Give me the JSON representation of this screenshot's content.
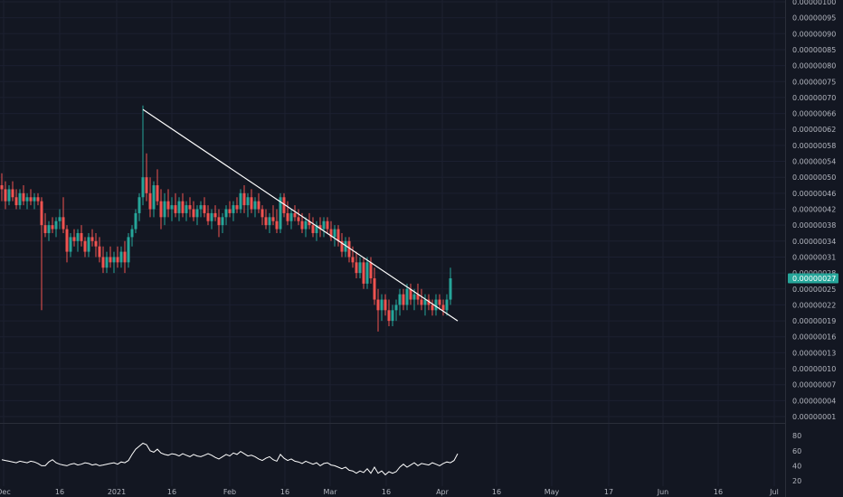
{
  "colors": {
    "background": "#131722",
    "up": "#26a69a",
    "down": "#ef5350",
    "grid": "#1c2030",
    "trendline": "#ffffff",
    "oscillator": "#ffffff",
    "axis_text": "#b2b5be",
    "price_badge": "#26a69a"
  },
  "chart_data": [
    {
      "type": "candlestick",
      "title": "",
      "grid": true,
      "y_axis_position": "right",
      "ylim": [
        0,
        1e-06
      ],
      "y_ticks": [
        "0.00000100",
        "0.00000095",
        "0.00000090",
        "0.00000085",
        "0.00000080",
        "0.00000075",
        "0.00000070",
        "0.00000066",
        "0.00000062",
        "0.00000058",
        "0.00000054",
        "0.00000050",
        "0.00000046",
        "0.00000042",
        "0.00000038",
        "0.00000034",
        "0.00000031",
        "0.00000028",
        "0.00000025",
        "0.00000022",
        "0.00000019",
        "0.00000016",
        "0.00000013",
        "0.00000010",
        "0.00000007",
        "0.00000004",
        "0.00000001"
      ],
      "x_ticks": [
        "Dec",
        "16",
        "2021",
        "16",
        "Feb",
        "16",
        "Mar",
        "16",
        "Apr",
        "16",
        "May",
        "17",
        "Jun",
        "16",
        "Jul"
      ],
      "current_price": "0.00000027",
      "candles": [
        [
          4.8e-07,
          5.1e-07,
          4.4e-07,
          4.7e-07
        ],
        [
          4.7e-07,
          4.9e-07,
          4.2e-07,
          4.4e-07
        ],
        [
          4.4e-07,
          4.8e-07,
          4.3e-07,
          4.7e-07
        ],
        [
          4.7e-07,
          4.9e-07,
          4.4e-07,
          4.5e-07
        ],
        [
          4.5e-07,
          4.7e-07,
          4.2e-07,
          4.3e-07
        ],
        [
          4.3e-07,
          4.7e-07,
          4.2e-07,
          4.6e-07
        ],
        [
          4.6e-07,
          4.8e-07,
          4.3e-07,
          4.4e-07
        ],
        [
          4.4e-07,
          4.6e-07,
          4.2e-07,
          4.5e-07
        ],
        [
          4.5e-07,
          4.7e-07,
          4.3e-07,
          4.4e-07
        ],
        [
          4.4e-07,
          4.6e-07,
          4.2e-07,
          4.5e-07
        ],
        [
          4.5e-07,
          4.6e-07,
          4.3e-07,
          4.4e-07
        ],
        [
          4.4e-07,
          4.5e-07,
          2.1e-07,
          3.8e-07
        ],
        [
          3.8e-07,
          4.1e-07,
          3.5e-07,
          3.6e-07
        ],
        [
          3.6e-07,
          3.9e-07,
          3.4e-07,
          3.8e-07
        ],
        [
          3.8e-07,
          4e-07,
          3.6e-07,
          3.7e-07
        ],
        [
          3.7e-07,
          4e-07,
          3.5e-07,
          3.9e-07
        ],
        [
          3.9e-07,
          4.2e-07,
          3.7e-07,
          4e-07
        ],
        [
          4e-07,
          4.5e-07,
          3.6e-07,
          3.7e-07
        ],
        [
          3.7e-07,
          3.8e-07,
          3e-07,
          3.2e-07
        ],
        [
          3.2e-07,
          3.6e-07,
          3.1e-07,
          3.5e-07
        ],
        [
          3.5e-07,
          3.7e-07,
          3.3e-07,
          3.4e-07
        ],
        [
          3.4e-07,
          3.7e-07,
          3.2e-07,
          3.6e-07
        ],
        [
          3.6e-07,
          3.8e-07,
          3.3e-07,
          3.4e-07
        ],
        [
          3.4e-07,
          3.5e-07,
          3.1e-07,
          3.2e-07
        ],
        [
          3.2e-07,
          3.6e-07,
          3.1e-07,
          3.5e-07
        ],
        [
          3.5e-07,
          3.7e-07,
          3.3e-07,
          3.4e-07
        ],
        [
          3.4e-07,
          3.6e-07,
          3.1e-07,
          3.3e-07
        ],
        [
          3.3e-07,
          3.5e-07,
          3e-07,
          3.1e-07
        ],
        [
          3.1e-07,
          3.3e-07,
          2.8e-07,
          2.9e-07
        ],
        [
          2.9e-07,
          3.2e-07,
          2.8e-07,
          3.1e-07
        ],
        [
          3.1e-07,
          3.3e-07,
          2.9e-07,
          3e-07
        ],
        [
          3e-07,
          3.2e-07,
          2.8e-07,
          3.1e-07
        ],
        [
          3.1e-07,
          3.3e-07,
          2.9e-07,
          3e-07
        ],
        [
          3e-07,
          3.3e-07,
          2.9e-07,
          3.2e-07
        ],
        [
          3.2e-07,
          3.4e-07,
          2.8e-07,
          3e-07
        ],
        [
          3e-07,
          3.6e-07,
          2.9e-07,
          3.5e-07
        ],
        [
          3.5e-07,
          3.8e-07,
          3.3e-07,
          3.7e-07
        ],
        [
          3.7e-07,
          4.2e-07,
          3.6e-07,
          4.1e-07
        ],
        [
          4.1e-07,
          4.6e-07,
          3.9e-07,
          4.5e-07
        ],
        [
          4.5e-07,
          6.8e-07,
          4.3e-07,
          5e-07
        ],
        [
          5e-07,
          5.6e-07,
          4.4e-07,
          4.6e-07
        ],
        [
          4.6e-07,
          5e-07,
          4e-07,
          4.2e-07
        ],
        [
          4.2e-07,
          4.9e-07,
          4e-07,
          4.8e-07
        ],
        [
          4.8e-07,
          5.2e-07,
          4.3e-07,
          4.4e-07
        ],
        [
          4.4e-07,
          4.7e-07,
          3.7e-07,
          4e-07
        ],
        [
          4e-07,
          4.6e-07,
          3.8e-07,
          4.4e-07
        ],
        [
          4.4e-07,
          4.7e-07,
          4e-07,
          4.2e-07
        ],
        [
          4.2e-07,
          4.5e-07,
          3.9e-07,
          4.3e-07
        ],
        [
          4.3e-07,
          4.6e-07,
          4e-07,
          4.1e-07
        ],
        [
          4.1e-07,
          4.5e-07,
          3.9e-07,
          4.4e-07
        ],
        [
          4.4e-07,
          4.6e-07,
          4e-07,
          4.1e-07
        ],
        [
          4.1e-07,
          4.4e-07,
          3.9e-07,
          4.3e-07
        ],
        [
          4.3e-07,
          4.5e-07,
          4e-07,
          4.2e-07
        ],
        [
          4.2e-07,
          4.4e-07,
          3.9e-07,
          4e-07
        ],
        [
          4e-07,
          4.3e-07,
          3.8e-07,
          4.2e-07
        ],
        [
          4.2e-07,
          4.4e-07,
          4e-07,
          4.3e-07
        ],
        [
          4.3e-07,
          4.5e-07,
          4e-07,
          4.1e-07
        ],
        [
          4.1e-07,
          4.3e-07,
          3.8e-07,
          3.9e-07
        ],
        [
          3.9e-07,
          4.2e-07,
          3.7e-07,
          4.1e-07
        ],
        [
          4.1e-07,
          4.3e-07,
          3.9e-07,
          4e-07
        ],
        [
          4e-07,
          4.2e-07,
          3.5e-07,
          3.8e-07
        ],
        [
          3.8e-07,
          4.1e-07,
          3.6e-07,
          4e-07
        ],
        [
          4e-07,
          4.3e-07,
          3.8e-07,
          4.2e-07
        ],
        [
          4.2e-07,
          4.4e-07,
          4e-07,
          4.1e-07
        ],
        [
          4.1e-07,
          4.4e-07,
          3.9e-07,
          4.3e-07
        ],
        [
          4.3e-07,
          4.5e-07,
          4.1e-07,
          4.2e-07
        ],
        [
          4.2e-07,
          4.7e-07,
          4.1e-07,
          4.6e-07
        ],
        [
          4.6e-07,
          4.8e-07,
          4.1e-07,
          4.3e-07
        ],
        [
          4.3e-07,
          4.6e-07,
          4e-07,
          4.5e-07
        ],
        [
          4.5e-07,
          4.7e-07,
          4.1e-07,
          4.2e-07
        ],
        [
          4.2e-07,
          4.5e-07,
          4e-07,
          4.4e-07
        ],
        [
          4.4e-07,
          4.6e-07,
          4.1e-07,
          4.2e-07
        ],
        [
          4.2e-07,
          4.3e-07,
          3.8e-07,
          4e-07
        ],
        [
          4e-07,
          4.2e-07,
          3.7e-07,
          3.8e-07
        ],
        [
          3.8e-07,
          4.1e-07,
          3.6e-07,
          4e-07
        ],
        [
          4e-07,
          4.3e-07,
          3.8e-07,
          3.9e-07
        ],
        [
          3.9e-07,
          4.2e-07,
          3.6e-07,
          3.7e-07
        ],
        [
          3.7e-07,
          4.6e-07,
          3.6e-07,
          4.5e-07
        ],
        [
          4.5e-07,
          4.6e-07,
          4e-07,
          4.1e-07
        ],
        [
          4.1e-07,
          4.4e-07,
          3.8e-07,
          3.9e-07
        ],
        [
          3.9e-07,
          4.2e-07,
          3.7e-07,
          4.1e-07
        ],
        [
          4.1e-07,
          4.3e-07,
          3.9e-07,
          4e-07
        ],
        [
          4e-07,
          4.2e-07,
          3.8e-07,
          3.9e-07
        ],
        [
          3.9e-07,
          4.1e-07,
          3.6e-07,
          3.7e-07
        ],
        [
          3.7e-07,
          4e-07,
          3.5e-07,
          3.9e-07
        ],
        [
          3.9e-07,
          4.1e-07,
          3.7e-07,
          3.8e-07
        ],
        [
          3.8e-07,
          4e-07,
          3.5e-07,
          3.6e-07
        ],
        [
          3.6e-07,
          3.9e-07,
          3.4e-07,
          3.8e-07
        ],
        [
          3.8e-07,
          4e-07,
          3.5e-07,
          3.7e-07
        ],
        [
          3.7e-07,
          4e-07,
          3.5e-07,
          3.9e-07
        ],
        [
          3.9e-07,
          4e-07,
          3.6e-07,
          3.7e-07
        ],
        [
          3.7e-07,
          3.9e-07,
          3.4e-07,
          3.5e-07
        ],
        [
          3.5e-07,
          3.8e-07,
          3.3e-07,
          3.7e-07
        ],
        [
          3.7e-07,
          3.8e-07,
          3.3e-07,
          3.4e-07
        ],
        [
          3.4e-07,
          3.6e-07,
          3.1e-07,
          3.2e-07
        ],
        [
          3.2e-07,
          3.5e-07,
          3.1e-07,
          3.4e-07
        ],
        [
          3.4e-07,
          3.5e-07,
          3e-07,
          3.1e-07
        ],
        [
          3.1e-07,
          3.3e-07,
          2.9e-07,
          3e-07
        ],
        [
          3e-07,
          3.2e-07,
          2.7e-07,
          2.8e-07
        ],
        [
          2.8e-07,
          3.1e-07,
          2.7e-07,
          3e-07
        ],
        [
          3e-07,
          3.1e-07,
          2.5e-07,
          2.6e-07
        ],
        [
          2.6e-07,
          3.1e-07,
          2.5e-07,
          3e-07
        ],
        [
          3e-07,
          3.1e-07,
          2.6e-07,
          2.7e-07
        ],
        [
          2.7e-07,
          2.9e-07,
          2.2e-07,
          2.3e-07
        ],
        [
          2.3e-07,
          2.5e-07,
          1.7e-07,
          2.1e-07
        ],
        [
          2.1e-07,
          2.4e-07,
          1.9e-07,
          2.3e-07
        ],
        [
          2.3e-07,
          2.4e-07,
          2e-07,
          2.1e-07
        ],
        [
          2.1e-07,
          2.3e-07,
          1.8e-07,
          1.9e-07
        ],
        [
          1.9e-07,
          2.2e-07,
          1.8e-07,
          2.1e-07
        ],
        [
          2.1e-07,
          2.3e-07,
          1.9e-07,
          2.2e-07
        ],
        [
          2.2e-07,
          2.5e-07,
          2e-07,
          2.4e-07
        ],
        [
          2.4e-07,
          2.5e-07,
          2.1e-07,
          2.2e-07
        ],
        [
          2.2e-07,
          2.6e-07,
          2.1e-07,
          2.5e-07
        ],
        [
          2.5e-07,
          2.6e-07,
          2.2e-07,
          2.3e-07
        ],
        [
          2.3e-07,
          2.5e-07,
          2.1e-07,
          2.4e-07
        ],
        [
          2.4e-07,
          2.6e-07,
          2.2e-07,
          2.3e-07
        ],
        [
          2.3e-07,
          2.5e-07,
          2.1e-07,
          2.2e-07
        ],
        [
          2.2e-07,
          2.4e-07,
          2e-07,
          2.3e-07
        ],
        [
          2.3e-07,
          2.4e-07,
          2.1e-07,
          2.2e-07
        ],
        [
          2.2e-07,
          2.3e-07,
          2e-07,
          2.1e-07
        ],
        [
          2.1e-07,
          2.4e-07,
          2e-07,
          2.3e-07
        ],
        [
          2.3e-07,
          2.4e-07,
          2.1e-07,
          2.2e-07
        ],
        [
          2.2e-07,
          2.3e-07,
          2e-07,
          2.1e-07
        ],
        [
          2.1e-07,
          2.4e-07,
          2e-07,
          2.3e-07
        ],
        [
          2.3e-07,
          2.9e-07,
          2.2e-07,
          2.7e-07
        ]
      ],
      "trendline": [
        [
          39,
          6.7e-07
        ],
        [
          126,
          1.9e-07
        ]
      ]
    },
    {
      "type": "line",
      "title": "",
      "grid": false,
      "y_axis_position": "right",
      "ylim": [
        20,
        85
      ],
      "y_ticks": [
        "80",
        "60",
        "40",
        "20"
      ],
      "values": [
        48,
        47,
        46,
        45,
        44,
        46,
        45,
        44,
        46,
        45,
        43,
        40,
        40,
        45,
        48,
        44,
        42,
        41,
        40,
        42,
        43,
        41,
        42,
        44,
        43,
        41,
        42,
        40,
        41,
        42,
        43,
        44,
        42,
        45,
        44,
        47,
        55,
        62,
        66,
        70,
        68,
        60,
        58,
        62,
        57,
        55,
        54,
        56,
        55,
        53,
        56,
        54,
        52,
        55,
        53,
        52,
        54,
        56,
        54,
        51,
        49,
        52,
        55,
        53,
        57,
        55,
        59,
        56,
        53,
        54,
        52,
        49,
        47,
        50,
        52,
        48,
        46,
        55,
        50,
        47,
        49,
        46,
        45,
        43,
        46,
        44,
        42,
        44,
        40,
        43,
        44,
        41,
        40,
        38,
        36,
        38,
        34,
        33,
        30,
        33,
        31,
        36,
        30,
        38,
        30,
        33,
        28,
        32,
        30,
        32,
        38,
        42,
        38,
        41,
        44,
        40,
        43,
        42,
        41,
        44,
        42,
        40,
        43,
        45,
        44,
        47,
        56
      ]
    }
  ]
}
